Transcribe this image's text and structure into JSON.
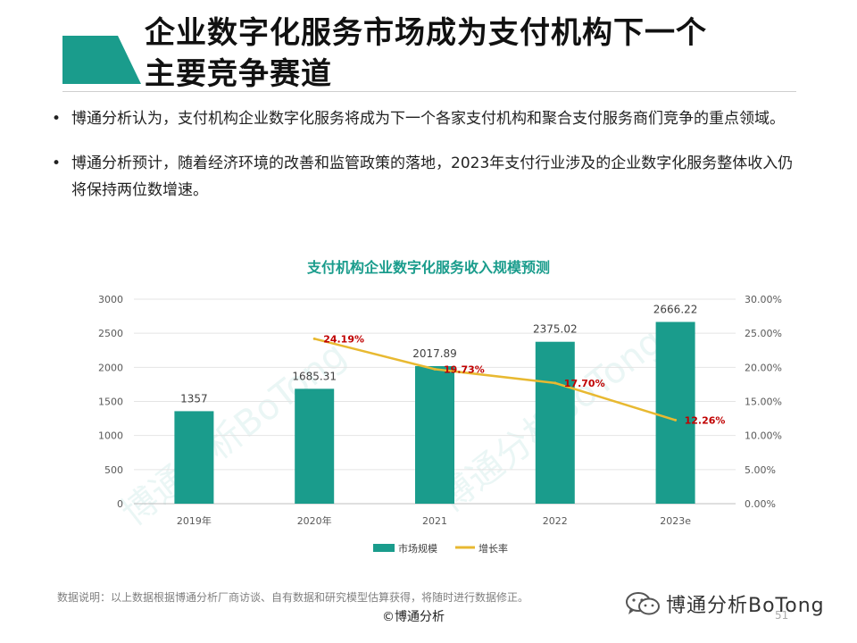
{
  "slide": {
    "title_line1": "企业数字化服务市场成为支付机构下一个",
    "title_line2": "主要竞争赛道"
  },
  "bullets": [
    "博通分析认为，支付机构企业数字化服务将成为下一个各家支付机构和聚合支付服务商们竞争的重点领域。",
    "博通分析预计，随着经济环境的改善和监管政策的落地，2023年支付行业涉及的企业数字化服务整体收入仍将保持两位数增速。"
  ],
  "bullet_marker": "•",
  "chart_data": {
    "type": "bar",
    "title": "支付机构企业数字化服务收入规模预测",
    "categories": [
      "2019年",
      "2020年",
      "2021",
      "2022",
      "2023e"
    ],
    "series": [
      {
        "name": "市场规模",
        "type": "bar",
        "axis": "left",
        "color": "#1a9c8c",
        "values": [
          1357,
          1685.31,
          2017.89,
          2375.02,
          2666.22
        ],
        "labels": [
          "1357",
          "1685.31",
          "2017.89",
          "2375.02",
          "2666.22"
        ]
      },
      {
        "name": "增长率",
        "type": "line",
        "axis": "right",
        "color": "#e8b931",
        "values": [
          null,
          24.19,
          19.73,
          17.7,
          12.26
        ],
        "labels": [
          "",
          "24.19%",
          "19.73%",
          "17.70%",
          "12.26%"
        ]
      }
    ],
    "y_left": {
      "min": 0,
      "max": 3000,
      "ticks": [
        "0",
        "500",
        "1000",
        "1500",
        "2000",
        "2500",
        "3000"
      ]
    },
    "y_right": {
      "min": 0,
      "max": 30,
      "ticks": [
        "0.00%",
        "5.00%",
        "10.00%",
        "15.00%",
        "20.00%",
        "25.00%",
        "30.00%"
      ]
    },
    "grid": true,
    "legend_position": "bottom",
    "label_color_line": "#c00000",
    "watermark": "博通分析BoTong"
  },
  "footer": {
    "note": "数据说明：以上数据根据博通分析厂商访谈、自有数据和研究模型估算获得，将随时进行数据修正。",
    "copyright": "©博通分析",
    "page_number": "51",
    "brand": "博通分析BoTong",
    "brand_icon": "wechat-icon"
  },
  "colors": {
    "accent": "#1a9c8c",
    "line": "#e8b931"
  }
}
